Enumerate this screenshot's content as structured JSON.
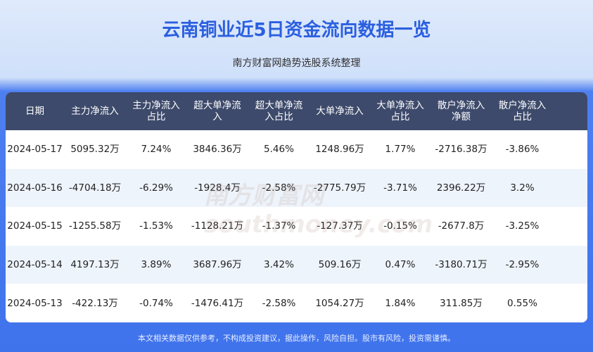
{
  "title": "云南铜业近5日资金流向数据一览",
  "subtitle": "南方财富网趋势选股系统整理",
  "headers": [
    "日期",
    "主力净流入",
    "主力净流入\n占比",
    "超大单净流\n入",
    "超大单净流\n入占比",
    "大单净流入",
    "大单净流入\n占比",
    "散户净流入\n净额",
    "散户净流入\n占比"
  ],
  "rows": [
    [
      "2024-05-17",
      "5095.32万",
      "7.24%",
      "3846.36万",
      "5.46%",
      "1248.96万",
      "1.77%",
      "-2716.38万",
      "-3.86%"
    ],
    [
      "2024-05-16",
      "-4704.18万",
      "-6.29%",
      "-1928.4万",
      "-2.58%",
      "-2775.79万",
      "-3.71%",
      "2396.22万",
      "3.2%"
    ],
    [
      "2024-05-15",
      "-1255.58万",
      "-1.53%",
      "-1128.21万",
      "-1.37%",
      "-127.37万",
      "-0.15%",
      "-2677.8万",
      "-3.25%"
    ],
    [
      "2024-05-14",
      "4197.13万",
      "3.89%",
      "3687.96万",
      "3.42%",
      "509.16万",
      "0.47%",
      "-3180.71万",
      "-2.95%"
    ],
    [
      "2024-05-13",
      "-422.13万",
      "-0.74%",
      "-1476.41万",
      "-2.58%",
      "1054.27万",
      "1.84%",
      "311.85万",
      "0.55%"
    ]
  ],
  "watermark": "南方财富网 southmoney.com",
  "footer": "本文相关数据仅供参考，不构成投资建议，据此操作，风险自担。股市有风险，投资需谨慎。"
}
